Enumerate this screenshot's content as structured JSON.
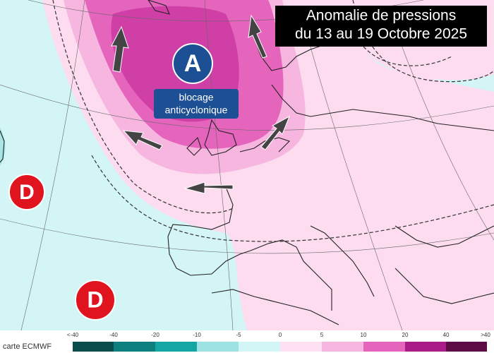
{
  "title": {
    "lines": [
      "Anomalie de pressions",
      "du 13 au 19 Octobre 2025"
    ]
  },
  "high": {
    "symbol": "A",
    "label_lines": [
      "blocage",
      "anticyclonique"
    ]
  },
  "lows": [
    {
      "symbol": "D"
    },
    {
      "symbol": "D"
    }
  ],
  "source": "carte ECMWF",
  "colorbar": {
    "labels": [
      "<-40",
      "-40",
      "-20",
      "-10",
      "-5",
      "0",
      "5",
      "10",
      "20",
      "40",
      ">40"
    ]
  }
}
